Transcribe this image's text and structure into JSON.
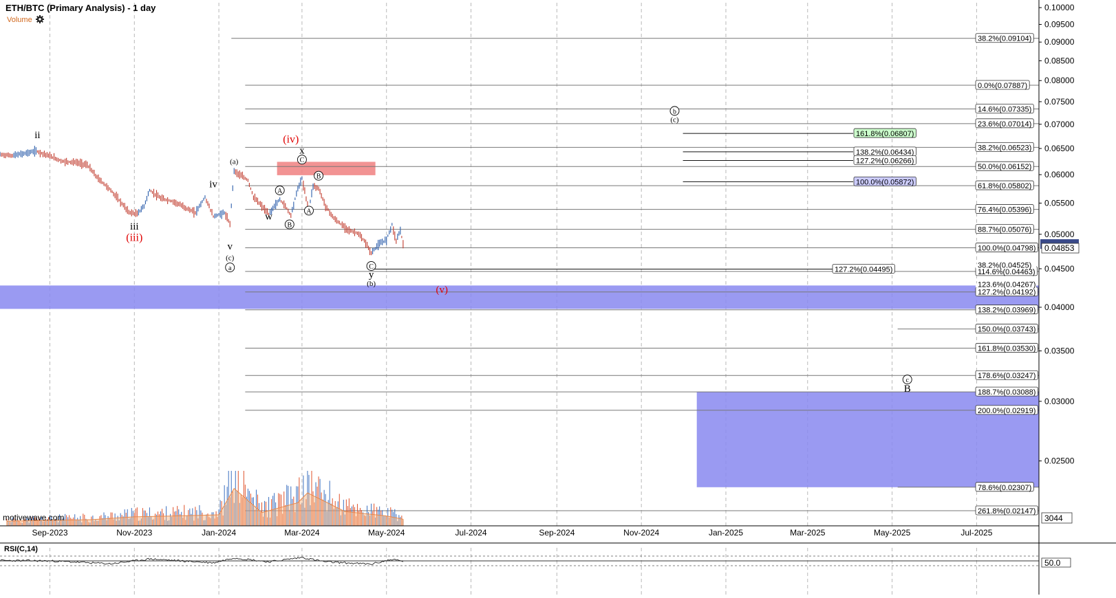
{
  "header": {
    "title": "ETH/BTC (Primary Analysis) - 1 day",
    "volume_label": "Volume",
    "gear_icon": "gear-icon"
  },
  "watermark": "motivewave.com",
  "chart_data": {
    "type": "line",
    "title": "ETH/BTC (Primary Analysis) - 1 day",
    "y_scale": "log",
    "ylim": [
      0.0205,
      0.1015
    ],
    "xlim": [
      "2023-07-27",
      "2025-08-15"
    ],
    "y_ticks": [
      "0.02500",
      "0.03000",
      "0.03500",
      "0.04000",
      "0.04500",
      "0.05000",
      "0.05500",
      "0.06000",
      "0.06500",
      "0.07000",
      "0.07500",
      "0.08000",
      "0.08500",
      "0.09000",
      "0.09500",
      "0.10000"
    ],
    "x_ticks": [
      {
        "label": "Sep-2023",
        "date": "2023-09-01"
      },
      {
        "label": "Nov-2023",
        "date": "2023-11-01"
      },
      {
        "label": "Jan-2024",
        "date": "2024-01-01"
      },
      {
        "label": "Mar-2024",
        "date": "2024-03-01"
      },
      {
        "label": "May-2024",
        "date": "2024-05-01"
      },
      {
        "label": "Jul-2024",
        "date": "2024-07-01"
      },
      {
        "label": "Sep-2024",
        "date": "2024-09-01"
      },
      {
        "label": "Nov-2024",
        "date": "2024-11-01"
      },
      {
        "label": "Jan-2025",
        "date": "2025-01-01"
      },
      {
        "label": "Mar-2025",
        "date": "2025-03-01"
      },
      {
        "label": "May-2025",
        "date": "2025-05-01"
      },
      {
        "label": "Jul-2025",
        "date": "2025-07-01"
      }
    ],
    "last_price": "0.04853",
    "volume_last": "3044",
    "price_series": [
      {
        "date": "2023-07-27",
        "value": 0.0638
      },
      {
        "date": "2023-08-05",
        "value": 0.0636
      },
      {
        "date": "2023-08-15",
        "value": 0.0641
      },
      {
        "date": "2023-08-22",
        "value": 0.0645
      },
      {
        "date": "2023-09-01",
        "value": 0.0635
      },
      {
        "date": "2023-09-10",
        "value": 0.0625
      },
      {
        "date": "2023-09-20",
        "value": 0.0623
      },
      {
        "date": "2023-09-28",
        "value": 0.0618
      },
      {
        "date": "2023-10-05",
        "value": 0.0595
      },
      {
        "date": "2023-10-15",
        "value": 0.0572
      },
      {
        "date": "2023-10-22",
        "value": 0.0552
      },
      {
        "date": "2023-10-28",
        "value": 0.0535
      },
      {
        "date": "2023-11-03",
        "value": 0.0532
      },
      {
        "date": "2023-11-08",
        "value": 0.0545
      },
      {
        "date": "2023-11-12",
        "value": 0.0572
      },
      {
        "date": "2023-11-20",
        "value": 0.0558
      },
      {
        "date": "2023-11-30",
        "value": 0.0552
      },
      {
        "date": "2023-12-08",
        "value": 0.0542
      },
      {
        "date": "2023-12-15",
        "value": 0.0534
      },
      {
        "date": "2023-12-22",
        "value": 0.056
      },
      {
        "date": "2023-12-28",
        "value": 0.0528
      },
      {
        "date": "2024-01-05",
        "value": 0.0534
      },
      {
        "date": "2024-01-09",
        "value": 0.0516
      },
      {
        "date": "2024-01-12",
        "value": 0.0607
      },
      {
        "date": "2024-01-17",
        "value": 0.0598
      },
      {
        "date": "2024-01-22",
        "value": 0.059
      },
      {
        "date": "2024-01-26",
        "value": 0.056
      },
      {
        "date": "2024-02-01",
        "value": 0.0545
      },
      {
        "date": "2024-02-06",
        "value": 0.0531
      },
      {
        "date": "2024-02-10",
        "value": 0.0545
      },
      {
        "date": "2024-02-14",
        "value": 0.0556
      },
      {
        "date": "2024-02-18",
        "value": 0.0545
      },
      {
        "date": "2024-02-22",
        "value": 0.053
      },
      {
        "date": "2024-02-27",
        "value": 0.0575
      },
      {
        "date": "2024-03-01",
        "value": 0.0593
      },
      {
        "date": "2024-03-04",
        "value": 0.0558
      },
      {
        "date": "2024-03-06",
        "value": 0.054
      },
      {
        "date": "2024-03-09",
        "value": 0.058
      },
      {
        "date": "2024-03-13",
        "value": 0.0575
      },
      {
        "date": "2024-03-18",
        "value": 0.0545
      },
      {
        "date": "2024-03-24",
        "value": 0.0525
      },
      {
        "date": "2024-03-30",
        "value": 0.0514
      },
      {
        "date": "2024-04-05",
        "value": 0.0505
      },
      {
        "date": "2024-04-10",
        "value": 0.0502
      },
      {
        "date": "2024-04-16",
        "value": 0.0487
      },
      {
        "date": "2024-04-20",
        "value": 0.0472
      },
      {
        "date": "2024-04-25",
        "value": 0.0484
      },
      {
        "date": "2024-05-01",
        "value": 0.0492
      },
      {
        "date": "2024-05-05",
        "value": 0.0515
      },
      {
        "date": "2024-05-08",
        "value": 0.049
      },
      {
        "date": "2024-05-11",
        "value": 0.0507
      },
      {
        "date": "2024-05-13",
        "value": 0.0485
      }
    ],
    "volume_series": [
      {
        "date": "2023-08-01",
        "value": 420
      },
      {
        "date": "2023-09-01",
        "value": 500
      },
      {
        "date": "2023-10-01",
        "value": 560
      },
      {
        "date": "2023-11-01",
        "value": 820
      },
      {
        "date": "2023-12-01",
        "value": 900
      },
      {
        "date": "2024-01-01",
        "value": 1000
      },
      {
        "date": "2024-01-12",
        "value": 3400
      },
      {
        "date": "2024-02-01",
        "value": 1200
      },
      {
        "date": "2024-02-27",
        "value": 2100
      },
      {
        "date": "2024-03-05",
        "value": 3000
      },
      {
        "date": "2024-04-01",
        "value": 1300
      },
      {
        "date": "2024-05-01",
        "value": 900
      },
      {
        "date": "2024-05-13",
        "value": 600
      }
    ],
    "rsi_ref": "50.0",
    "rsi_series": [
      {
        "date": "2023-07-27",
        "value": 52
      },
      {
        "date": "2023-09-01",
        "value": 50
      },
      {
        "date": "2023-10-15",
        "value": 35
      },
      {
        "date": "2023-11-12",
        "value": 60
      },
      {
        "date": "2023-12-28",
        "value": 40
      },
      {
        "date": "2024-01-12",
        "value": 66
      },
      {
        "date": "2024-02-06",
        "value": 45
      },
      {
        "date": "2024-03-01",
        "value": 68
      },
      {
        "date": "2024-03-18",
        "value": 45
      },
      {
        "date": "2024-04-20",
        "value": 33
      },
      {
        "date": "2024-05-05",
        "value": 58
      },
      {
        "date": "2024-05-13",
        "value": 48
      }
    ],
    "fib_levels": [
      {
        "label": "38.2%(0.09104)",
        "value": 0.09104,
        "from": "2024-01-10"
      },
      {
        "label": "0.0%(0.07887)",
        "value": 0.07887,
        "from": "2024-01-20"
      },
      {
        "label": "14.6%(0.07335)",
        "value": 0.07335,
        "from": "2024-01-20"
      },
      {
        "label": "23.6%(0.07014)",
        "value": 0.07014,
        "from": "2024-01-20"
      },
      {
        "label": "38.2%(0.06523)",
        "value": 0.06523,
        "from": "2024-01-20"
      },
      {
        "label": "50.0%(0.06152)",
        "value": 0.06152,
        "from": "2024-01-20"
      },
      {
        "label": "61.8%(0.05802)",
        "value": 0.05802,
        "from": "2024-01-20"
      },
      {
        "label": "76.4%(0.05396)",
        "value": 0.05396,
        "from": "2024-01-20"
      },
      {
        "label": "88.7%(0.05076)",
        "value": 0.05076,
        "from": "2024-01-20"
      },
      {
        "label": "100.0%(0.04798)",
        "value": 0.04798,
        "from": "2024-01-20"
      },
      {
        "label": "114.6%(0.04463)",
        "value": 0.04463,
        "from": "2024-01-20"
      },
      {
        "label": "127.2%(0.04192)",
        "value": 0.04192,
        "from": "2024-01-20"
      },
      {
        "label": "138.2%(0.03969)",
        "value": 0.03969,
        "from": "2024-01-20"
      },
      {
        "label": "150.0%(0.03743)",
        "value": 0.03743,
        "from": "2025-05-05"
      },
      {
        "label": "161.8%(0.03530)",
        "value": 0.0353,
        "from": "2024-01-20"
      },
      {
        "label": "178.6%(0.03247)",
        "value": 0.03247,
        "from": "2024-01-20"
      },
      {
        "label": "188.7%(0.03088)",
        "value": 0.03088,
        "from": "2024-01-20"
      },
      {
        "label": "200.0%(0.02919)",
        "value": 0.02919,
        "from": "2024-01-20"
      },
      {
        "label": "78.6%(0.02307)",
        "value": 0.02307,
        "from": "2025-05-05"
      },
      {
        "label": "261.8%(0.02147)",
        "value": 0.02147,
        "from": "2024-01-20"
      }
    ],
    "fib_levels_partial": [
      {
        "label": "38.2%(0.04525)",
        "value": 0.04525
      },
      {
        "label": "123.6%(0.04267)",
        "value": 0.04267
      }
    ],
    "projection_levels": [
      {
        "label": "161.8%(0.06807)",
        "value": 0.06807,
        "color": "#ccffcc"
      },
      {
        "label": "138.2%(0.06434)",
        "value": 0.06434,
        "color": "#ffffff"
      },
      {
        "label": "127.2%(0.06266)",
        "value": 0.06266,
        "color": "#ffffff"
      },
      {
        "label": "100.0%(0.05872)",
        "value": 0.05872,
        "color": "#ccccff"
      }
    ],
    "c_target_line": {
      "label": "127.2%(0.04495)",
      "value": 0.04495,
      "from": "2024-04-21",
      "to": "2025-04-05"
    },
    "zones": [
      {
        "name": "red-resistance",
        "from": "2024-02-12",
        "to": "2024-04-23",
        "ymin": 0.0599,
        "ymax": 0.0624,
        "color": "#f08080"
      },
      {
        "name": "blue-support",
        "from": "2023-07-27",
        "to": "2025-08-15",
        "ymin": 0.0398,
        "ymax": 0.04275,
        "color": "#8888f0"
      },
      {
        "name": "blue-target",
        "from": "2024-12-11",
        "to": "2025-08-15",
        "ymin": 0.02307,
        "ymax": 0.03088,
        "color": "#8888f0"
      }
    ],
    "wave_labels": [
      {
        "text": "ii",
        "date": "2023-08-23",
        "value": 0.0671,
        "color": "#000000",
        "circled": false
      },
      {
        "text": "iii",
        "date": "2023-11-01",
        "value": 0.0507,
        "color": "#000000",
        "circled": false
      },
      {
        "text": "(iii)",
        "date": "2023-11-01",
        "value": 0.049,
        "color": "#e00000",
        "circled": false
      },
      {
        "text": "iv",
        "date": "2023-12-28",
        "value": 0.0577,
        "color": "#000000",
        "circled": false
      },
      {
        "text": "v",
        "date": "2024-01-09",
        "value": 0.0477,
        "color": "#000000",
        "circled": false
      },
      {
        "text": "(c)",
        "date": "2024-01-09",
        "value": 0.0462,
        "color": "#000000",
        "circled": false
      },
      {
        "text": "a",
        "date": "2024-01-09",
        "value": 0.0448,
        "color": "#000000",
        "circled": true
      },
      {
        "text": "(a)",
        "date": "2024-01-12",
        "value": 0.062,
        "color": "#000000",
        "circled": false
      },
      {
        "text": "(iv)",
        "date": "2024-02-22",
        "value": 0.0662,
        "color": "#e00000",
        "circled": false
      },
      {
        "text": "x",
        "date": "2024-03-01",
        "value": 0.064,
        "color": "#000000",
        "circled": false
      },
      {
        "text": "C",
        "date": "2024-03-01",
        "value": 0.0623,
        "color": "#000000",
        "circled": true
      },
      {
        "text": "A",
        "date": "2024-02-14",
        "value": 0.0567,
        "color": "#000000",
        "circled": true
      },
      {
        "text": "w",
        "date": "2024-02-06",
        "value": 0.0523,
        "color": "#000000",
        "circled": false
      },
      {
        "text": "B",
        "date": "2024-02-21",
        "value": 0.0511,
        "color": "#000000",
        "circled": true
      },
      {
        "text": "A",
        "date": "2024-03-06",
        "value": 0.0533,
        "color": "#000000",
        "circled": true
      },
      {
        "text": "B",
        "date": "2024-03-13",
        "value": 0.0593,
        "color": "#000000",
        "circled": true
      },
      {
        "text": "C",
        "date": "2024-04-20",
        "value": 0.045,
        "color": "#000000",
        "circled": true
      },
      {
        "text": "y",
        "date": "2024-04-20",
        "value": 0.0438,
        "color": "#000000",
        "circled": false
      },
      {
        "text": "(b)",
        "date": "2024-04-20",
        "value": 0.0427,
        "color": "#000000",
        "circled": false
      },
      {
        "text": "(v)",
        "date": "2024-06-10",
        "value": 0.0418,
        "color": "#e00000",
        "circled": false
      },
      {
        "text": "b",
        "date": "2024-11-25",
        "value": 0.0723,
        "color": "#000000",
        "circled": true
      },
      {
        "text": "(c)",
        "date": "2024-11-25",
        "value": 0.0705,
        "color": "#000000",
        "circled": false
      },
      {
        "text": "c",
        "date": "2025-05-12",
        "value": 0.0318,
        "color": "#000000",
        "circled": true
      },
      {
        "text": "B",
        "date": "2025-05-12",
        "value": 0.0309,
        "color": "#000000",
        "circled": false
      }
    ],
    "grid": true,
    "legend": "none"
  }
}
